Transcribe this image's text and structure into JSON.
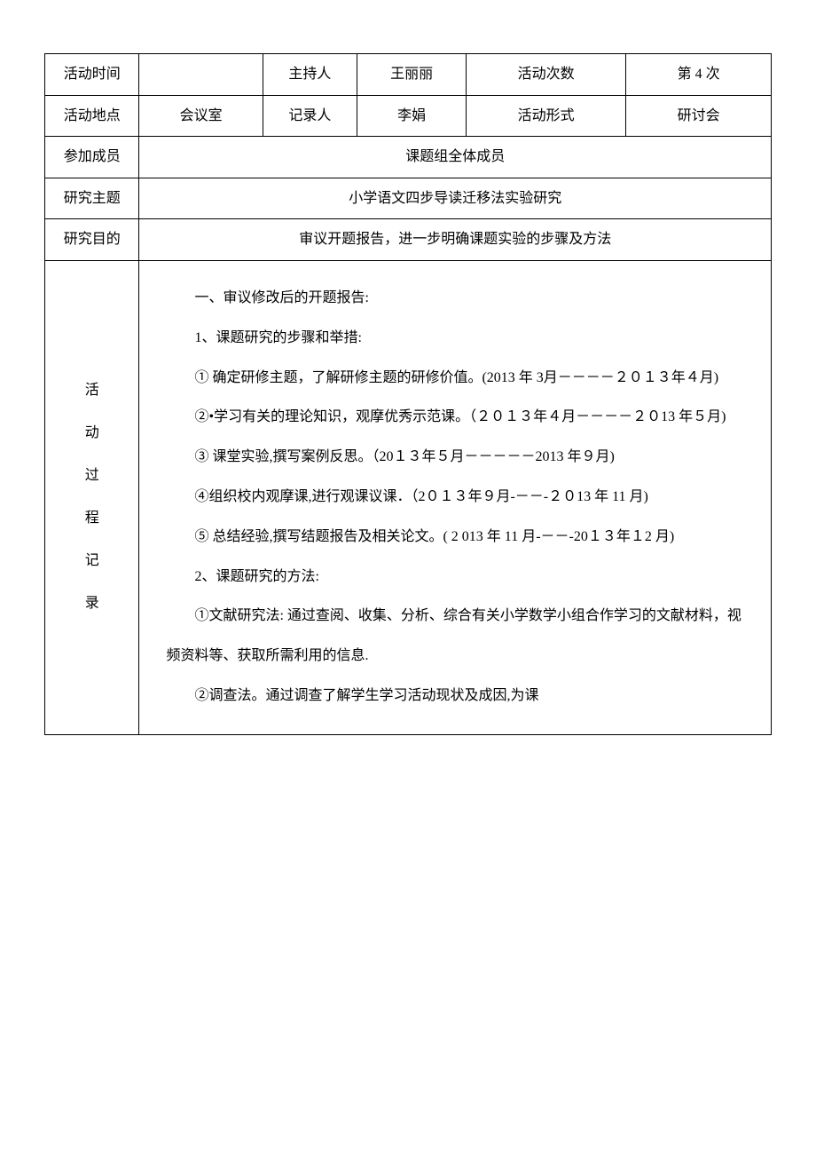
{
  "row1": {
    "label1": "活动时间",
    "value1": "",
    "label2": "主持人",
    "value2": "王丽丽",
    "label3": "活动次数",
    "value3": "第 4 次"
  },
  "row2": {
    "label1": "活动地点",
    "value1": "会议室",
    "label2": "记录人",
    "value2": "李娟",
    "label3": "活动形式",
    "value3": "研讨会"
  },
  "row3": {
    "label": "参加成员",
    "value": "课题组全体成员"
  },
  "row4": {
    "label": "研究主题",
    "value": "小学语文四步导读迁移法实验研究"
  },
  "row5": {
    "label": "研究目的",
    "value": "审议开题报告，进一步明确课题实验的步骤及方法"
  },
  "row6": {
    "label_chars": [
      "活",
      "动",
      "过",
      "程",
      "记",
      "录"
    ],
    "paragraphs": [
      "一、审议修改后的开题报告:",
      "1、课题研究的步骤和举措:",
      "① 确定研修主题，了解研修主题的研修价值。(2013 年 3月－－－－２０１３年４月)",
      "②•学习有关的理论知识，观摩优秀示范课。（２０１３年４月－－－－２０13 年５月)",
      "③ 课堂实验,撰写案例反思。（20１３年５月－－－－－2013 年９月)",
      "④组织校内观摩课,进行观课议课．（2０１３年９月-－－-２０13 年 11 月)",
      "⑤ 总结经验,撰写结题报告及相关论文。( 2 013 年 11 月-－－-20１３年１2 月)",
      "2、课题研究的方法:",
      "①文献研究法: 通过查阅、收集、分析、综合有关小学数学小组合作学习的文献材料，视频资料等、获取所需利用的信息.",
      "②调查法。通过调查了解学生学习活动现状及成因,为课"
    ]
  }
}
